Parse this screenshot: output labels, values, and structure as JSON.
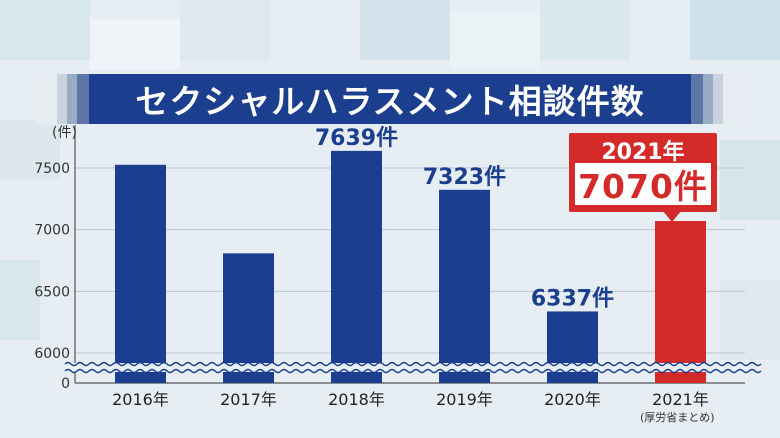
{
  "title": "セクシャルハラスメント相談件数",
  "chart_data": {
    "type": "bar",
    "title": "セクシャルハラスメント相談件数",
    "unit_label": "(件)",
    "categories": [
      "2016年",
      "2017年",
      "2018年",
      "2019年",
      "2020年",
      "2021年"
    ],
    "values": [
      7526,
      6808,
      7639,
      7323,
      6337,
      7070
    ],
    "data_labels": [
      "",
      "",
      "7639件",
      "7323件",
      "6337件",
      ""
    ],
    "y_ticks": [
      "7500",
      "7000",
      "6500",
      "6000",
      "0"
    ],
    "ylim": [
      0,
      7700
    ],
    "axis_break": [
      0,
      5900
    ],
    "highlight": {
      "category": "2021年",
      "label_year": "2021年",
      "label_value": "7070件"
    },
    "colors": {
      "bar": "#1b3f8e",
      "highlight": "#d42a2a"
    },
    "grid": true,
    "source_note": "(厚労省まとめ)"
  }
}
